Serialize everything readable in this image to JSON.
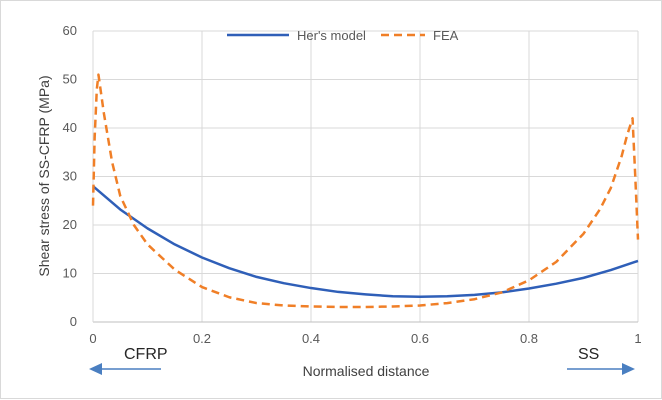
{
  "chart_data": {
    "type": "line",
    "title": "",
    "xlabel": "Normalised distance",
    "ylabel": "Shear stress of SS-CFRP (MPa)",
    "xlim": [
      0,
      1
    ],
    "ylim": [
      0,
      60
    ],
    "xticks": [
      0,
      0.2,
      0.4,
      0.6,
      0.8,
      1
    ],
    "xtick_labels": [
      "0",
      "0.2",
      "0.4",
      "0.6",
      "0.8",
      "1"
    ],
    "yticks": [
      0,
      10,
      20,
      30,
      40,
      50,
      60
    ],
    "ytick_labels": [
      "0",
      "10",
      "20",
      "30",
      "40",
      "50",
      "60"
    ],
    "grid": true,
    "legend_position": "top",
    "series": [
      {
        "name": "Her's model",
        "style": "solid",
        "color": "#2f5fb8",
        "x": [
          0,
          0.05,
          0.1,
          0.15,
          0.2,
          0.25,
          0.3,
          0.35,
          0.4,
          0.45,
          0.5,
          0.55,
          0.6,
          0.65,
          0.7,
          0.75,
          0.8,
          0.85,
          0.9,
          0.95,
          1.0
        ],
        "y": [
          28,
          23.2,
          19.3,
          16.0,
          13.3,
          11.1,
          9.3,
          8.0,
          7.0,
          6.2,
          5.7,
          5.3,
          5.2,
          5.3,
          5.6,
          6.1,
          6.9,
          7.9,
          9.1,
          10.7,
          12.6
        ]
      },
      {
        "name": "FEA",
        "style": "dashed",
        "color": "#f07f27",
        "x": [
          0,
          0.003,
          0.007,
          0.01,
          0.02,
          0.035,
          0.05,
          0.075,
          0.1,
          0.15,
          0.2,
          0.25,
          0.3,
          0.35,
          0.4,
          0.45,
          0.5,
          0.55,
          0.6,
          0.65,
          0.7,
          0.75,
          0.8,
          0.85,
          0.9,
          0.93,
          0.95,
          0.97,
          0.98,
          0.99,
          0.995,
          1.0
        ],
        "y": [
          24,
          38,
          48,
          51,
          43,
          33,
          26,
          20,
          16,
          10.8,
          7.2,
          5.1,
          3.9,
          3.4,
          3.2,
          3.1,
          3.1,
          3.2,
          3.4,
          3.9,
          4.7,
          6.1,
          8.6,
          12.4,
          18.2,
          23.2,
          27.6,
          34.2,
          38.5,
          42,
          30,
          17
        ]
      }
    ],
    "annotations": {
      "left_label": "CFRP",
      "right_label": "SS"
    }
  }
}
